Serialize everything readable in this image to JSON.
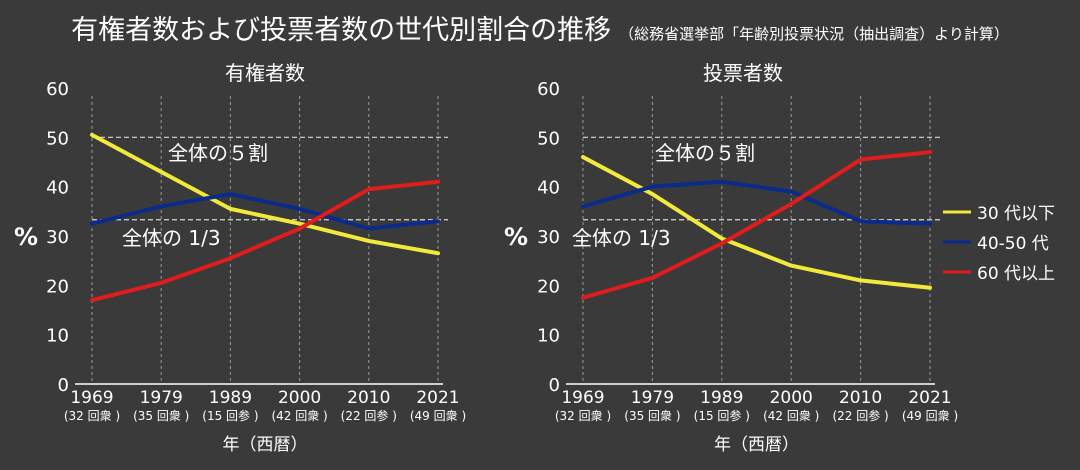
{
  "title": "有権者数および投票者数の世代別割合の推移",
  "subtitle": "（総務省選挙部「年齢別投票状況（抽出調査）より計算）",
  "ylabel": "%",
  "xlabel": "年（西暦）",
  "legend": [
    {
      "name": "30 代以下",
      "color": "#f2ea3a"
    },
    {
      "name": "40-50 代",
      "color": "#0a2a8c"
    },
    {
      "name": "60 代以上",
      "color": "#e01c1c"
    }
  ],
  "colors": {
    "background": "#3a3a3a",
    "grid": "#9a9a9a",
    "text": "#ffffff"
  },
  "chart_data": [
    {
      "type": "line",
      "title": "有権者数",
      "categories": [
        "1969",
        "1979",
        "1989",
        "2000",
        "2010",
        "2021"
      ],
      "category_sublabels": [
        "(32 回衆 )",
        "(35 回衆 )",
        "(15 回参 )",
        "(42 回衆 )",
        "(22 回参 )",
        "(49 回衆 )"
      ],
      "ylim": [
        0,
        60
      ],
      "yticks": [
        "0",
        "10",
        "20",
        "30",
        "40",
        "50",
        "60"
      ],
      "reference_lines": [
        {
          "value": 50,
          "label": "全体の５割"
        },
        {
          "value": 33.3,
          "label": "全体の 1/3"
        }
      ],
      "series": [
        {
          "name": "30 代以下",
          "values": [
            50.5,
            43,
            35.5,
            32.5,
            29,
            26.5
          ]
        },
        {
          "name": "40-50 代",
          "values": [
            32.5,
            36,
            38.5,
            35.5,
            31.5,
            33
          ]
        },
        {
          "name": "60 代以上",
          "values": [
            17,
            20.5,
            25.5,
            31.5,
            39.5,
            41
          ]
        }
      ]
    },
    {
      "type": "line",
      "title": "投票者数",
      "categories": [
        "1969",
        "1979",
        "1989",
        "2000",
        "2010",
        "2021"
      ],
      "category_sublabels": [
        "(32 回衆 )",
        "(35 回衆 )",
        "(15 回参 )",
        "(42 回衆 )",
        "(22 回参 )",
        "(49 回衆 )"
      ],
      "ylim": [
        0,
        60
      ],
      "yticks": [
        "0",
        "10",
        "20",
        "30",
        "40",
        "50",
        "60"
      ],
      "reference_lines": [
        {
          "value": 50,
          "label": "全体の５割"
        },
        {
          "value": 33.3,
          "label": "全体の 1/3"
        }
      ],
      "series": [
        {
          "name": "30 代以下",
          "values": [
            46,
            38.5,
            29.5,
            24,
            21,
            19.5
          ]
        },
        {
          "name": "40-50 代",
          "values": [
            36,
            40,
            41,
            39,
            33,
            32.5
          ]
        },
        {
          "name": "60 代以上",
          "values": [
            17.5,
            21.5,
            28.5,
            36.5,
            45.5,
            47
          ]
        }
      ]
    }
  ]
}
